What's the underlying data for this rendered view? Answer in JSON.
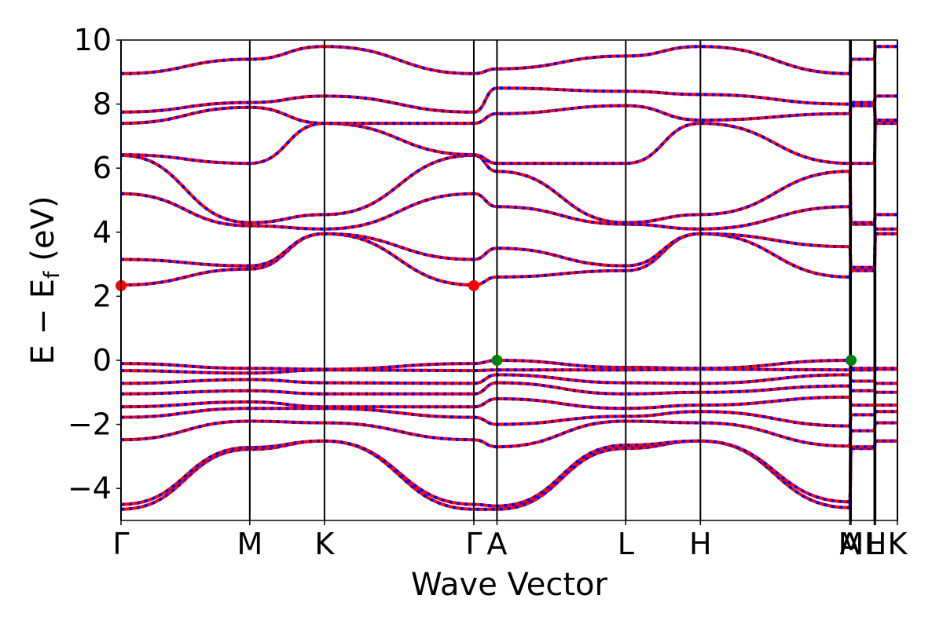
{
  "chart_data": {
    "type": "line",
    "xlabel": "Wave Vector",
    "ylabel": "E − E",
    "ylabel_sub": "f",
    "ylabel_unit": " (eV)",
    "ylim": [
      -5,
      10
    ],
    "yticks": [
      {
        "value": -4,
        "label": "−4"
      },
      {
        "value": -2,
        "label": "−2"
      },
      {
        "value": 0,
        "label": "0"
      },
      {
        "value": 2,
        "label": "2"
      },
      {
        "value": 4,
        "label": "4"
      },
      {
        "value": 6,
        "label": "6"
      },
      {
        "value": 8,
        "label": "8"
      },
      {
        "value": 10,
        "label": "10"
      }
    ],
    "xlim": [
      0,
      6.03
    ],
    "kpoints": [
      {
        "label": "Γ",
        "x": 0.0
      },
      {
        "label": "M",
        "x": 1.0
      },
      {
        "label": "K",
        "x": 1.58
      },
      {
        "label": "Γ",
        "x": 2.74
      },
      {
        "label": "A",
        "x": 2.92
      },
      {
        "label": "L",
        "x": 3.92
      },
      {
        "label": "H",
        "x": 4.5
      },
      {
        "label": "A",
        "x": 5.66
      },
      {
        "label": "M",
        "x": 5.67
      },
      {
        "label": "L",
        "x": 5.85
      },
      {
        "label": "H",
        "x": 5.86
      },
      {
        "label": "K",
        "x": 6.03
      }
    ],
    "grid": false,
    "legend": "none",
    "colors": {
      "spin_up": "#ff0000",
      "spin_down": "#0000ff",
      "cbm": "#ff0000",
      "vbm": "#008000"
    },
    "series": [
      {
        "x": [
          0,
          1,
          1.58,
          2.74,
          2.92,
          3.92,
          4.5,
          5.66,
          5.67,
          5.85,
          5.86,
          6.03
        ],
        "values": [
          -4.65,
          -2.78,
          -2.52,
          -4.65,
          -4.65,
          -2.75,
          -2.52,
          -4.6,
          -2.75,
          -2.75,
          -2.52,
          -2.52
        ]
      },
      {
        "x": [
          0,
          1,
          1.58,
          2.74,
          2.92,
          3.92,
          4.5,
          5.66,
          5.67,
          5.85,
          5.86,
          6.03
        ],
        "values": [
          -4.5,
          -2.72,
          -2.52,
          -4.5,
          -4.55,
          -2.65,
          -2.52,
          -4.42,
          -2.7,
          -2.7,
          -2.52,
          -2.52
        ]
      },
      {
        "x": [
          0,
          1,
          1.58,
          2.74,
          2.92,
          3.92,
          4.5,
          5.66,
          5.67,
          5.85,
          5.86,
          6.03
        ],
        "values": [
          -2.48,
          -1.9,
          -1.95,
          -2.48,
          -2.7,
          -1.9,
          -1.95,
          -2.68,
          -2.2,
          -2.2,
          -1.95,
          -1.95
        ]
      },
      {
        "x": [
          0,
          1,
          1.58,
          2.74,
          2.92,
          3.92,
          4.5,
          5.66,
          5.67,
          5.85,
          5.86,
          6.03
        ],
        "values": [
          -1.78,
          -1.5,
          -1.5,
          -1.78,
          -2.0,
          -1.75,
          -1.6,
          -2.05,
          -1.7,
          -1.7,
          -1.6,
          -1.6
        ]
      },
      {
        "x": [
          0,
          1,
          1.58,
          2.74,
          2.92,
          3.92,
          4.5,
          5.66,
          5.67,
          5.85,
          5.86,
          6.03
        ],
        "values": [
          -1.45,
          -1.3,
          -1.45,
          -1.45,
          -1.2,
          -1.5,
          -1.4,
          -1.15,
          -1.4,
          -1.4,
          -1.4,
          -1.4
        ]
      },
      {
        "x": [
          0,
          1,
          1.58,
          2.74,
          2.92,
          3.92,
          4.5,
          5.66,
          5.67,
          5.85,
          5.86,
          6.03
        ],
        "values": [
          -1.05,
          -0.95,
          -1.05,
          -1.05,
          -0.7,
          -1.05,
          -1.0,
          -0.8,
          -0.95,
          -0.95,
          -1.0,
          -1.0
        ]
      },
      {
        "x": [
          0,
          1,
          1.58,
          2.74,
          2.92,
          3.92,
          4.5,
          5.66,
          5.67,
          5.85,
          5.86,
          6.03
        ],
        "values": [
          -0.72,
          -0.6,
          -0.7,
          -0.72,
          -0.45,
          -0.7,
          -0.72,
          -0.45,
          -0.65,
          -0.65,
          -0.72,
          -0.72
        ]
      },
      {
        "x": [
          0,
          1,
          1.58,
          2.74,
          2.92,
          3.92,
          4.5,
          5.66,
          5.67,
          5.85,
          5.86,
          6.03
        ],
        "values": [
          -0.32,
          -0.4,
          -0.3,
          -0.32,
          -0.3,
          -0.3,
          -0.28,
          -0.3,
          -0.3,
          -0.3,
          -0.28,
          -0.28
        ]
      },
      {
        "x": [
          0,
          1,
          1.58,
          2.74,
          2.92,
          3.92,
          4.5,
          5.66,
          5.67,
          5.85,
          5.86,
          6.03
        ],
        "values": [
          -0.1,
          -0.25,
          -0.28,
          -0.1,
          0.0,
          -0.22,
          -0.25,
          0.0,
          -0.25,
          -0.25,
          -0.25,
          -0.25
        ]
      },
      {
        "x": [
          0,
          1,
          1.58,
          2.74,
          2.92,
          3.92,
          4.5,
          5.66,
          5.67,
          5.85,
          5.86,
          6.03
        ],
        "values": [
          2.35,
          2.85,
          3.95,
          2.35,
          2.6,
          2.8,
          3.95,
          2.6,
          2.8,
          2.8,
          3.95,
          3.95
        ]
      },
      {
        "x": [
          0,
          1,
          1.58,
          2.74,
          2.92,
          3.92,
          4.5,
          5.66,
          5.67,
          5.85,
          5.86,
          6.03
        ],
        "values": [
          3.15,
          2.95,
          3.95,
          3.15,
          3.5,
          2.95,
          3.95,
          3.55,
          2.9,
          2.9,
          3.95,
          3.95
        ]
      },
      {
        "x": [
          0,
          1,
          1.58,
          2.74,
          2.92,
          3.92,
          4.5,
          5.66,
          5.67,
          5.85,
          5.86,
          6.03
        ],
        "values": [
          5.2,
          4.2,
          4.1,
          5.2,
          4.8,
          4.25,
          4.1,
          4.8,
          4.25,
          4.25,
          4.1,
          4.1
        ]
      },
      {
        "x": [
          0,
          1,
          1.58,
          2.74,
          2.92,
          3.92,
          4.5,
          5.66,
          5.67,
          5.85,
          5.86,
          6.03
        ],
        "values": [
          6.4,
          4.3,
          4.55,
          6.4,
          5.9,
          4.3,
          4.55,
          5.9,
          4.3,
          4.3,
          4.55,
          4.55
        ]
      },
      {
        "x": [
          0,
          1,
          1.58,
          2.74,
          2.92,
          3.92,
          4.5,
          5.66,
          5.67,
          5.85,
          5.86,
          6.03
        ],
        "values": [
          6.42,
          6.15,
          7.4,
          6.42,
          6.15,
          6.15,
          7.4,
          6.15,
          6.15,
          6.15,
          7.4,
          7.4
        ]
      },
      {
        "x": [
          0,
          1,
          1.58,
          2.74,
          2.92,
          3.92,
          4.5,
          5.66,
          5.67,
          5.85,
          5.86,
          6.03
        ],
        "values": [
          7.4,
          7.9,
          7.4,
          7.4,
          7.7,
          7.95,
          7.5,
          7.7,
          7.95,
          7.95,
          7.5,
          7.5
        ]
      },
      {
        "x": [
          0,
          1,
          1.58,
          2.74,
          2.92,
          3.92,
          4.5,
          5.66,
          5.67,
          5.85,
          5.86,
          6.03
        ],
        "values": [
          7.75,
          8.05,
          8.25,
          7.75,
          8.5,
          8.4,
          8.3,
          8.0,
          8.05,
          8.05,
          8.25,
          8.25
        ]
      },
      {
        "x": [
          0,
          1,
          1.58,
          2.74,
          2.92,
          3.92,
          4.5,
          5.66,
          5.67,
          5.85,
          5.86,
          6.03
        ],
        "values": [
          8.95,
          9.4,
          9.8,
          8.95,
          9.1,
          9.5,
          9.8,
          8.95,
          9.4,
          9.4,
          9.8,
          9.8
        ]
      }
    ],
    "markers": [
      {
        "kind": "cbm",
        "x": 0.0,
        "y": 2.33
      },
      {
        "kind": "cbm",
        "x": 2.74,
        "y": 2.33
      },
      {
        "kind": "vbm",
        "x": 2.92,
        "y": 0.0
      },
      {
        "kind": "vbm",
        "x": 5.67,
        "y": 0.0
      }
    ]
  }
}
